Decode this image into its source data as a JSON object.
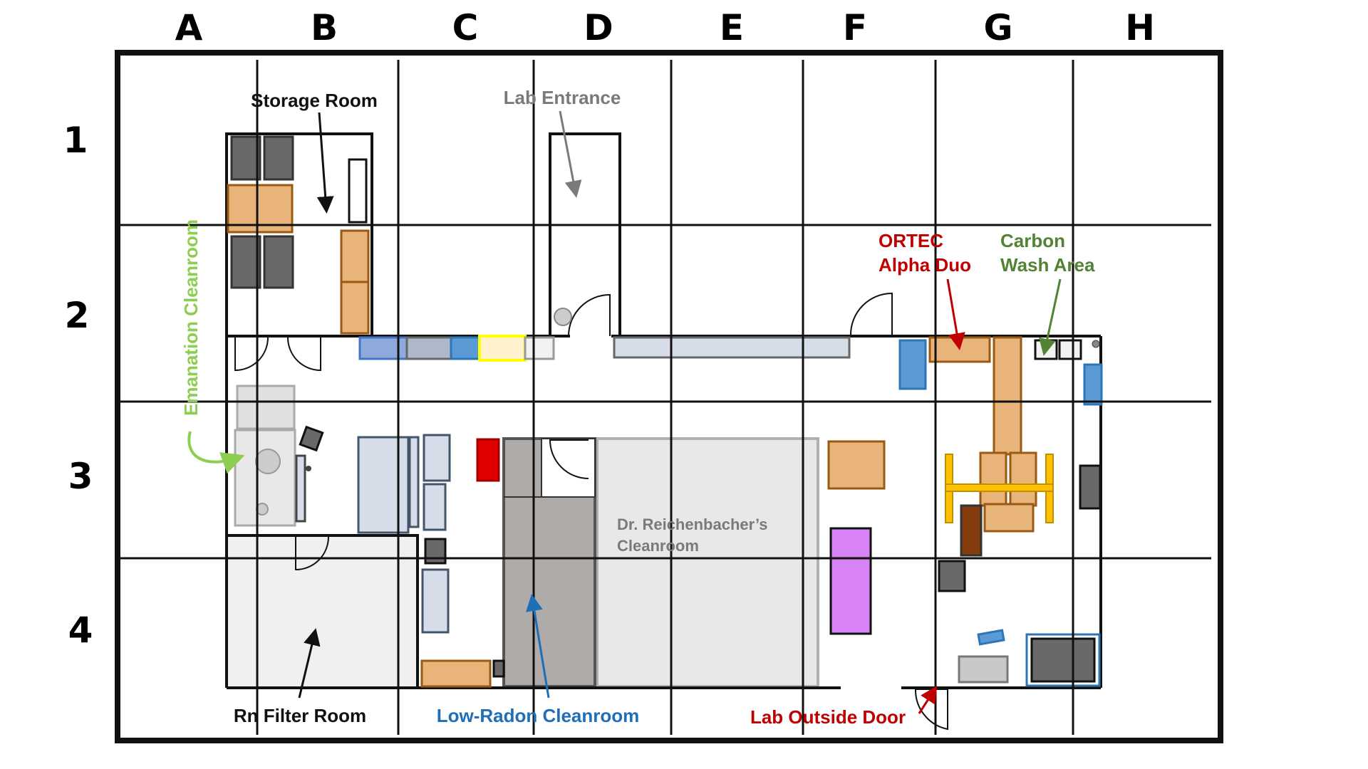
{
  "grid": {
    "columns": [
      "A",
      "B",
      "C",
      "D",
      "E",
      "F",
      "G",
      "H"
    ],
    "rows": [
      "1",
      "2",
      "3",
      "4"
    ]
  },
  "labels": {
    "storage_room": "Storage Room",
    "lab_entrance": "Lab Entrance",
    "emanation_cleanroom": "Emanation Cleanroom",
    "ortec_line1": "ORTEC",
    "ortec_line2": "Alpha Duo",
    "carbon_line1": "Carbon",
    "carbon_line2": "Wash Area",
    "reichenbacher_line1": "Dr. Reichenbacher’s",
    "reichenbacher_line2": "Cleanroom",
    "rn_filter_room": "Rn Filter Room",
    "low_radon_cleanroom": "Low-Radon Cleanroom",
    "lab_outside_door": "Lab Outside Door"
  },
  "colors": {
    "label_dark": "#111111",
    "label_gray": "#7a7a7a",
    "label_green": "#8ccf50",
    "label_red": "#c00000",
    "label_olive_green": "#548235",
    "label_blue": "#1f6fb8",
    "equipment_orange": "#e8b47a",
    "equipment_orange_border": "#9a5a12",
    "equipment_dark_gray": "#6b6868",
    "equipment_light_blue_gray": "#d6dce8",
    "equipment_blue": "#5b9bd5",
    "equipment_red": "#e00000",
    "equipment_yellow": "#fff2cc",
    "equipment_purple": "#d782f5",
    "fume_hood_yellow": "#ffc000",
    "equipment_brown": "#843c0c",
    "cleanroom_gray": "#e8e8e8",
    "low_radon_gray": "#aeaba9"
  }
}
